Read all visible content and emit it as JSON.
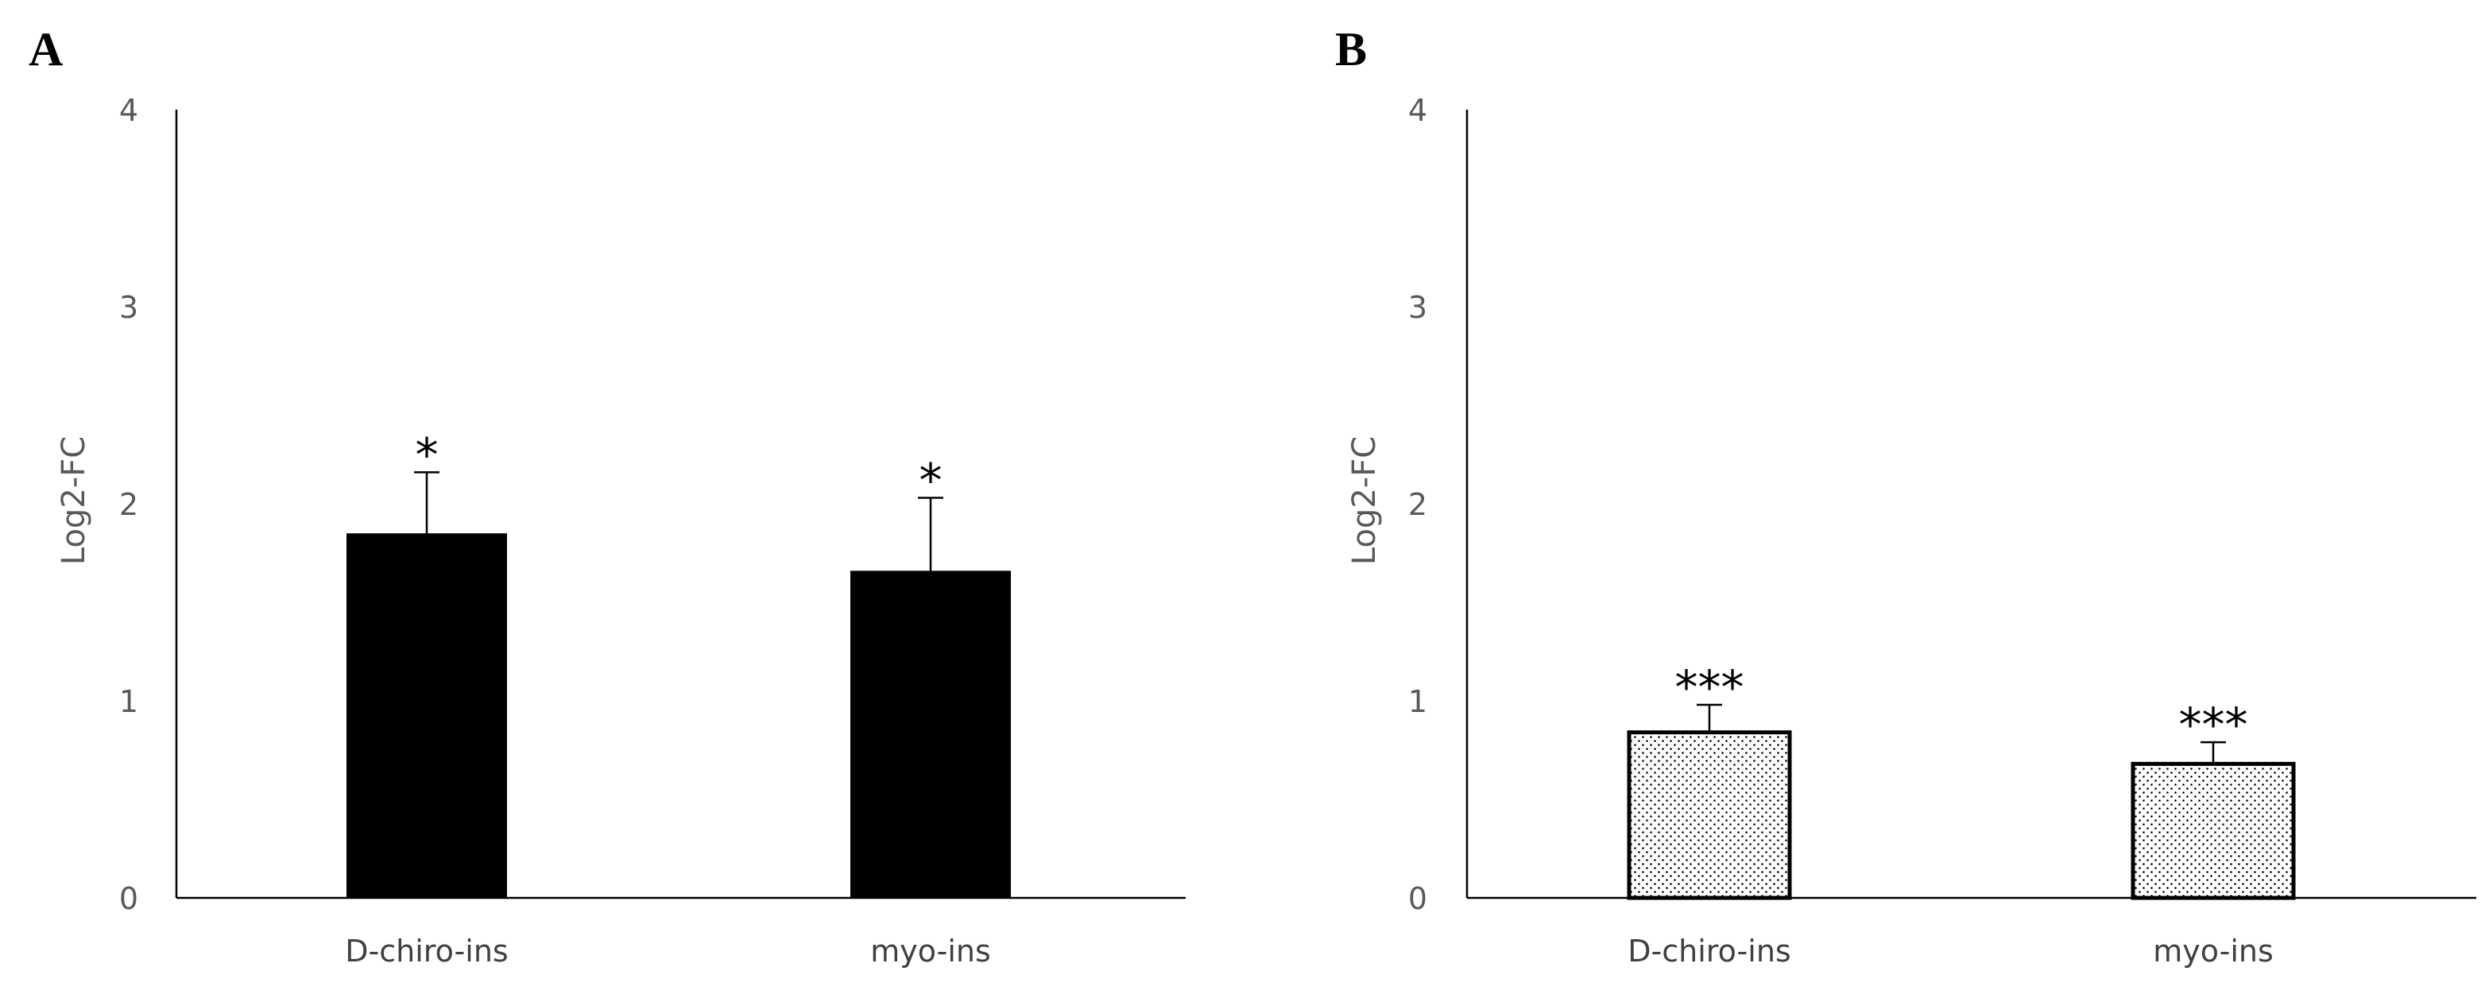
{
  "chart_data": [
    {
      "panel": "A",
      "type": "bar",
      "categories": [
        "D-chiro-ins",
        "myo-ins"
      ],
      "values": [
        1.85,
        1.66
      ],
      "error": [
        0.31,
        0.37
      ],
      "significance": [
        "*",
        "*"
      ],
      "ylabel": "Log2-FC",
      "xlabel": "",
      "ylim": [
        0,
        4
      ],
      "yticks": [
        "0",
        "1",
        "2",
        "3",
        "4"
      ],
      "fill": "solid",
      "bar_color": "#000000",
      "grid": false
    },
    {
      "panel": "B",
      "type": "bar",
      "categories": [
        "D-chiro-ins",
        "myo-ins"
      ],
      "values": [
        0.84,
        0.68
      ],
      "error": [
        0.14,
        0.11
      ],
      "significance": [
        "***",
        "***"
      ],
      "ylabel": "Log2-FC",
      "xlabel": "",
      "ylim": [
        0,
        4
      ],
      "yticks": [
        "0",
        "1",
        "2",
        "3",
        "4"
      ],
      "fill": "dotted",
      "bar_color": "#000000",
      "grid": false
    }
  ]
}
